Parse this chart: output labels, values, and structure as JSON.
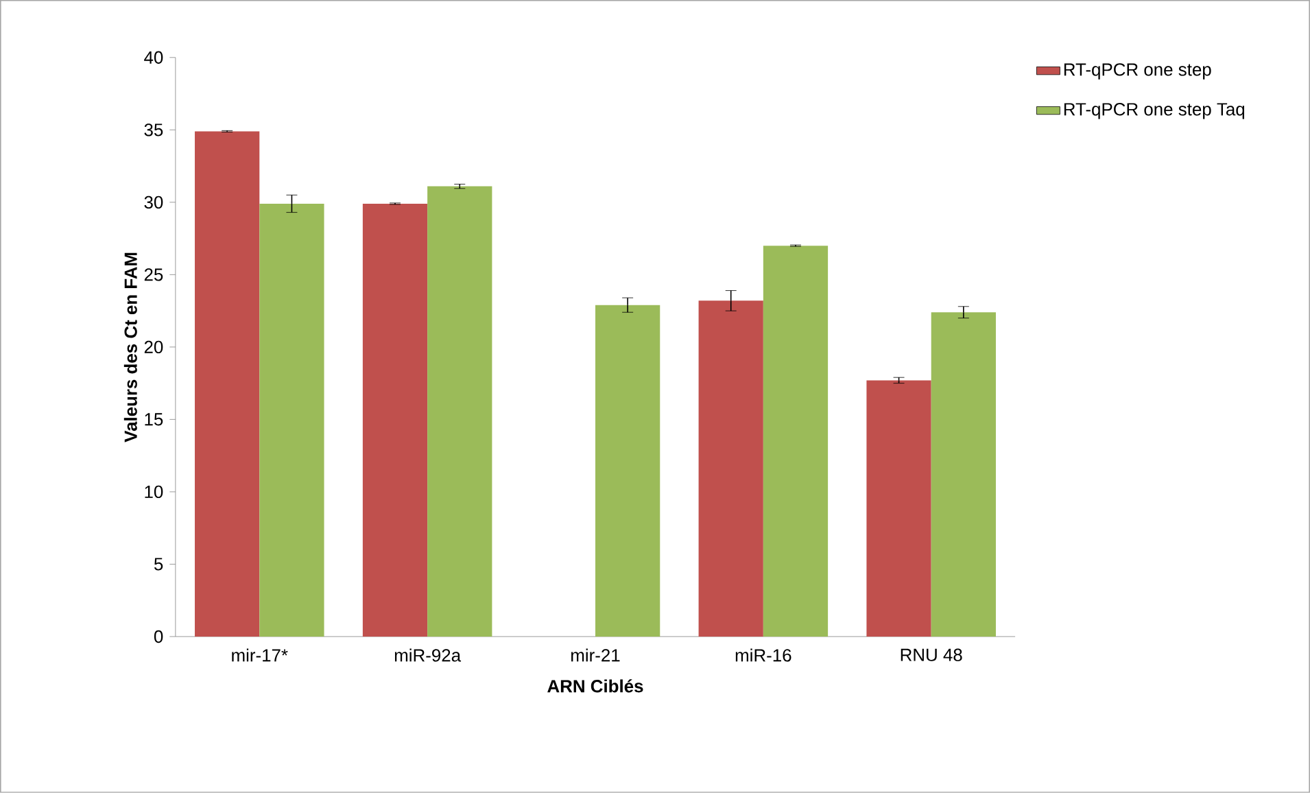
{
  "chart_data": {
    "type": "bar",
    "xlabel": "ARN Ciblés",
    "ylabel": "Valeurs des Ct en FAM",
    "categories": [
      "mir-17*",
      "miR-92a",
      "mir-21",
      "miR-16",
      "RNU 48"
    ],
    "series": [
      {
        "name": "RT-qPCR one step",
        "color": "#c0504d",
        "values": [
          34.9,
          29.9,
          null,
          23.2,
          17.7
        ],
        "errors": [
          0.05,
          0.05,
          null,
          0.7,
          0.2
        ]
      },
      {
        "name": "RT-qPCR one step Taq",
        "color": "#9bbb59",
        "values": [
          29.9,
          31.1,
          22.9,
          27.0,
          22.4
        ],
        "errors": [
          0.6,
          0.15,
          0.5,
          0.05,
          0.4
        ]
      }
    ],
    "ylim": [
      0,
      40
    ],
    "yticks": [
      0,
      5,
      10,
      15,
      20,
      25,
      30,
      35,
      40
    ],
    "legend": "right",
    "grid": false
  }
}
